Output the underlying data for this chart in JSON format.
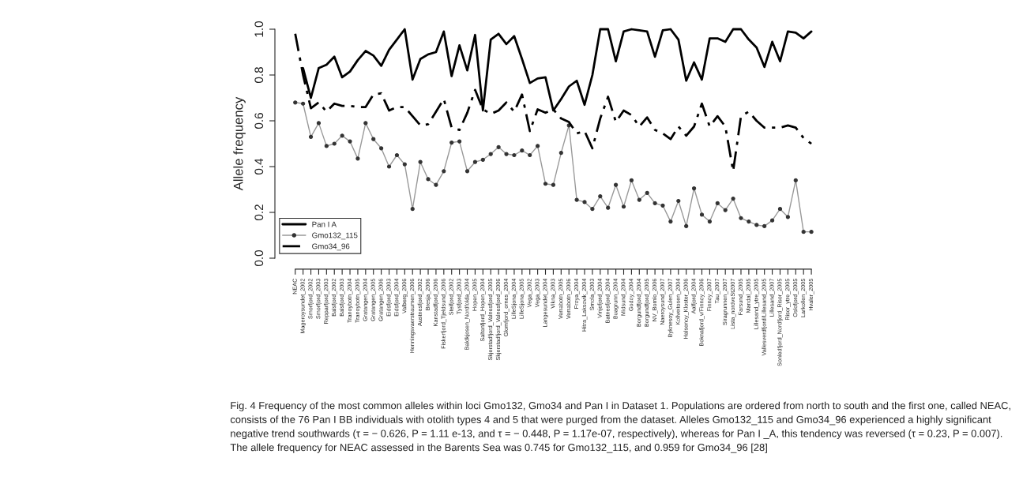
{
  "chart_data": {
    "type": "line",
    "ylabel": "Allele frequency",
    "categories": [
      "NEAC",
      "Mageroysundet_2002",
      "Smorfjord_2002",
      "Smorfjord_2003",
      "Repparfjord_2003",
      "Balsfjord_2002",
      "Balsfjord_2003",
      "Tranoybotn_2004",
      "Tranoybotn_2005",
      "Gratangen_2004",
      "Gratangen_2005",
      "Gratangen_2006",
      "Eidsfjord_2003",
      "Eidsfjord_2004",
      "Valberg_2006",
      "Henningsvaerstraumen_2006",
      "Austnesfjord_2002",
      "Bresja_2006",
      "Kanstadfjord_2006",
      "Fiskerfjord_Tjeldsund_2006",
      "Steifjord_2002",
      "Tysfjord_2003",
      "Baldkjosen_Nordfolda_2004",
      "Hopen_2005",
      "Saltenfjord_Hopen_2004",
      "Skjerstadfjord_Valnesfjord_2005",
      "Skjerstadfjord_Valnesfjord_2006",
      "Glomfjord_ornes_2004",
      "LilleSjona_2004",
      "LilleSjona_2005",
      "Vega_2002",
      "Vega_2003",
      "Langesundet_2004",
      "Vikna_2003",
      "Verrabotn_2005",
      "Verrabotn_2006",
      "Froya_2004",
      "Hitra_Laksovik_2004",
      "Smola_2003",
      "Vinjefjord_2004",
      "Batnesfjord_2004",
      "Buagrunn_2004",
      "Midsund_2004",
      "Godoy_2004",
      "Borgundfjord_2004",
      "Borgundfjord_2005",
      "NV_Bomlo_2006",
      "Naeroysund_2007",
      "Byknesoy_Gulen_2007",
      "Kollveitosen_2004",
      "Halsenoy_Kloster_2006",
      "Aalfjord_2004",
      "Boknafjord_v/Finnoy_2006",
      "Finnoy_2007",
      "Tau_2007",
      "Siragrunnen_2007",
      "Lista_nordveSt2007",
      "Farsund_2005",
      "Mandal_2005",
      "Lillesand_ytre_2005",
      "Vallesverdfjord/Lillesand_2005",
      "Lillesand_2007",
      "Sonledfjord_Nordfjord_Risor_2005",
      "Risor_ytre_2005",
      "Oslofjord_2005",
      "Larkollen_2005",
      "Hvaler_2005"
    ],
    "series": [
      {
        "name": "Pan I A",
        "color": "#000000",
        "line_style": "solid",
        "marker": "none",
        "values": [
          null,
          0.83,
          0.7,
          0.83,
          0.845,
          0.88,
          0.79,
          0.815,
          0.865,
          0.905,
          0.885,
          0.84,
          0.91,
          0.955,
          1.0,
          0.78,
          0.87,
          0.89,
          0.9,
          0.99,
          0.795,
          0.93,
          0.82,
          0.975,
          0.645,
          0.955,
          0.98,
          0.935,
          0.97,
          0.87,
          0.765,
          0.785,
          0.79,
          0.645,
          0.695,
          0.75,
          0.775,
          0.67,
          0.8,
          1.0,
          1.0,
          0.86,
          0.99,
          1.0,
          0.995,
          0.99,
          0.88,
          0.995,
          1.0,
          0.955,
          0.775,
          0.855,
          0.78,
          0.96,
          0.96,
          0.945,
          1.0,
          1.0,
          0.955,
          0.92,
          0.835,
          0.945,
          0.86,
          0.99,
          0.985,
          0.96,
          0.99
        ]
      },
      {
        "name": "Gmo132_115",
        "color": "#999999",
        "line_style": "solid",
        "marker": "circle",
        "values": [
          0.68,
          0.675,
          0.53,
          0.59,
          0.49,
          0.5,
          0.535,
          0.51,
          0.435,
          0.59,
          0.52,
          0.48,
          0.4,
          0.45,
          0.41,
          0.215,
          0.42,
          0.345,
          0.32,
          0.38,
          0.505,
          0.51,
          0.38,
          0.42,
          0.43,
          0.455,
          0.485,
          0.455,
          0.45,
          0.47,
          0.45,
          0.49,
          0.325,
          0.32,
          0.46,
          0.58,
          0.255,
          0.245,
          0.215,
          0.27,
          0.22,
          0.32,
          0.225,
          0.34,
          0.255,
          0.285,
          0.24,
          0.23,
          0.16,
          0.25,
          0.14,
          0.305,
          0.19,
          0.16,
          0.24,
          0.21,
          0.26,
          0.175,
          0.16,
          0.145,
          0.14,
          0.165,
          0.215,
          0.18,
          0.34,
          0.115,
          0.115
        ]
      },
      {
        "name": "Gmo34_96",
        "color": "#000000",
        "line_style": "dashdot",
        "marker": "none",
        "values": [
          0.98,
          0.8,
          0.655,
          0.68,
          0.64,
          0.675,
          0.665,
          0.665,
          0.66,
          0.66,
          0.715,
          0.72,
          0.645,
          0.66,
          0.66,
          0.62,
          0.58,
          0.585,
          0.64,
          0.695,
          0.57,
          0.56,
          0.635,
          0.735,
          0.65,
          0.63,
          0.645,
          0.68,
          0.64,
          0.715,
          0.555,
          0.65,
          0.635,
          0.65,
          0.61,
          0.595,
          0.545,
          0.555,
          0.48,
          0.61,
          0.705,
          0.595,
          0.645,
          0.625,
          0.575,
          0.615,
          0.56,
          0.545,
          0.52,
          0.575,
          0.535,
          0.575,
          0.675,
          0.575,
          0.62,
          0.575,
          0.38,
          0.62,
          0.64,
          0.6,
          0.57,
          0.57,
          0.57,
          0.58,
          0.57,
          0.525,
          0.5
        ]
      }
    ],
    "ylim": [
      0,
      1
    ],
    "yticks": [
      {
        "value": 0,
        "label": "0.0"
      },
      {
        "value": 0.2,
        "label": "0.2"
      },
      {
        "value": 0.4,
        "label": "0.4"
      },
      {
        "value": 0.6,
        "label": "0.6"
      },
      {
        "value": 0.8,
        "label": "0.8"
      },
      {
        "value": 1,
        "label": "1.0"
      }
    ],
    "grid": false,
    "legend": "bottom left",
    "annotations": [
      "Fig. 4 Frequency of the most common alleles within loci Gmo132, Gmo34 and Pan I in Dataset 1. Populations are ordered from north to south and the first one, called NEAC, consists of the 76 Pan I BB individuals with otolith types 4 and 5 that were purged from the dataset. Alleles Gmo132_115 and Gmo34_96 experienced a highly significant negative trend southwards (τ = − 0.626, P = 1.11 e-13, and τ = − 0.448, P = 1.17e-07, respectively), whereas for Pan I _A, this tendency was reversed (τ = 0.23, P = 0.007). The allele frequency for NEAC assessed in the Barents Sea was 0.745 for Gmo132_115, and 0.959 for Gmo34_96 [28]"
    ]
  }
}
